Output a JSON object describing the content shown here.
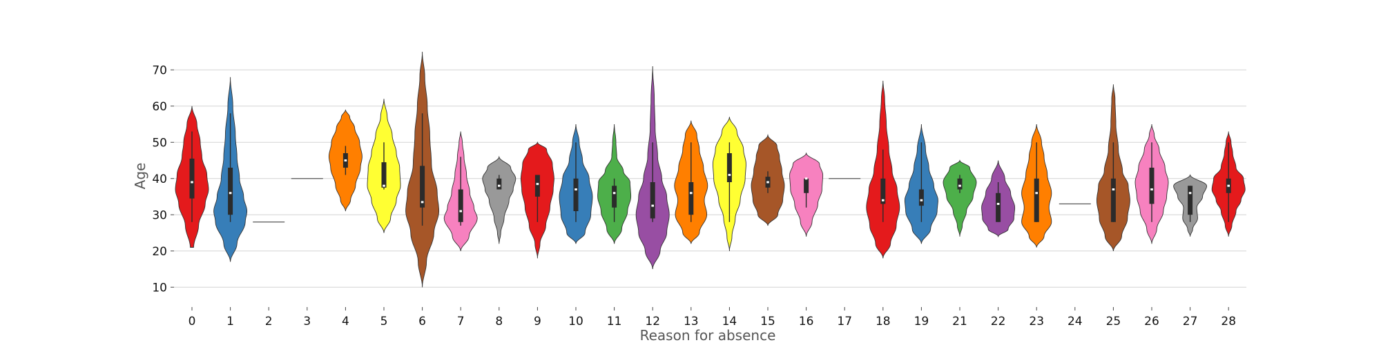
{
  "chart_data": {
    "type": "violin",
    "title": "",
    "xlabel": "Reason for absence",
    "ylabel": "Age",
    "ylim": [
      7,
      75
    ],
    "yticks": [
      10,
      20,
      30,
      40,
      50,
      60,
      70
    ],
    "grid": "horizontal",
    "categories": [
      "0",
      "1",
      "2",
      "3",
      "4",
      "5",
      "6",
      "7",
      "8",
      "9",
      "10",
      "11",
      "12",
      "13",
      "14",
      "15",
      "16",
      "17",
      "18",
      "19",
      "21",
      "22",
      "23",
      "24",
      "25",
      "26",
      "27",
      "28"
    ],
    "colors": [
      "#e41a1c",
      "#377eb8",
      "#4daf4a",
      "#984ea3",
      "#ff7f00",
      "#ffff33",
      "#a65628",
      "#f781bf",
      "#999999"
    ],
    "distributions": [
      {
        "category": "0",
        "min": 28,
        "q1": 34.5,
        "median": 39,
        "q3": 45.5,
        "max": 53,
        "range": [
          21,
          60
        ],
        "shape": [
          [
            21,
            0.1
          ],
          [
            27,
            0.4
          ],
          [
            33,
            0.8
          ],
          [
            37,
            1.0
          ],
          [
            41,
            0.9
          ],
          [
            46,
            0.6
          ],
          [
            50,
            0.5
          ],
          [
            55,
            0.3
          ],
          [
            60,
            0
          ]
        ]
      },
      {
        "category": "1",
        "min": 28,
        "q1": 30,
        "median": 36,
        "q3": 43,
        "max": 58,
        "range": [
          17,
          68
        ],
        "shape": [
          [
            17,
            0
          ],
          [
            22,
            0.4
          ],
          [
            28,
            0.9
          ],
          [
            31,
            1.0
          ],
          [
            35,
            0.8
          ],
          [
            40,
            0.55
          ],
          [
            46,
            0.4
          ],
          [
            52,
            0.3
          ],
          [
            60,
            0.15
          ],
          [
            68,
            0
          ]
        ]
      },
      {
        "category": "2",
        "single": 28
      },
      {
        "category": "3",
        "single": 40
      },
      {
        "category": "4",
        "min": 41,
        "q1": 43,
        "median": 45,
        "q3": 47,
        "max": 49,
        "range": [
          31,
          59
        ],
        "shape": [
          [
            31,
            0
          ],
          [
            34,
            0.3
          ],
          [
            38,
            0.6
          ],
          [
            43,
            0.9
          ],
          [
            46,
            1.0
          ],
          [
            50,
            0.85
          ],
          [
            54,
            0.55
          ],
          [
            57,
            0.25
          ],
          [
            59,
            0
          ]
        ]
      },
      {
        "category": "5",
        "min": 37,
        "q1": 37.5,
        "median": 38,
        "q3": 44.5,
        "max": 50,
        "range": [
          25,
          62
        ],
        "shape": [
          [
            25,
            0
          ],
          [
            29,
            0.4
          ],
          [
            34,
            0.75
          ],
          [
            38,
            1.0
          ],
          [
            43,
            0.95
          ],
          [
            47,
            0.75
          ],
          [
            52,
            0.5
          ],
          [
            57,
            0.2
          ],
          [
            62,
            0
          ]
        ]
      },
      {
        "category": "6",
        "min": 27,
        "q1": 32,
        "median": 33.5,
        "q3": 43.5,
        "max": 58,
        "range": [
          10,
          75
        ],
        "shape": [
          [
            10,
            0
          ],
          [
            17,
            0.25
          ],
          [
            25,
            0.7
          ],
          [
            31,
            1.0
          ],
          [
            36,
            0.9
          ],
          [
            44,
            0.55
          ],
          [
            52,
            0.45
          ],
          [
            60,
            0.3
          ],
          [
            68,
            0.15
          ],
          [
            75,
            0
          ]
        ]
      },
      {
        "category": "7",
        "min": 27,
        "q1": 28,
        "median": 31,
        "q3": 37,
        "max": 46,
        "range": [
          20,
          53
        ],
        "shape": [
          [
            20,
            0
          ],
          [
            24,
            0.5
          ],
          [
            29,
            1.0
          ],
          [
            32,
            0.8
          ],
          [
            36,
            0.55
          ],
          [
            41,
            0.35
          ],
          [
            46,
            0.2
          ],
          [
            50,
            0.1
          ],
          [
            53,
            0
          ]
        ]
      },
      {
        "category": "8",
        "min": 37,
        "q1": 37,
        "median": 38,
        "q3": 40,
        "max": 41,
        "range": [
          22,
          46
        ],
        "shape": [
          [
            22,
            0
          ],
          [
            25,
            0.1
          ],
          [
            29,
            0.3
          ],
          [
            34,
            0.6
          ],
          [
            37,
            0.85
          ],
          [
            40,
            1.0
          ],
          [
            43,
            0.7
          ],
          [
            46,
            0
          ]
        ]
      },
      {
        "category": "9",
        "min": 28,
        "q1": 35,
        "median": 38.5,
        "q3": 41,
        "max": 41,
        "range": [
          18,
          50
        ],
        "shape": [
          [
            18,
            0
          ],
          [
            22,
            0.15
          ],
          [
            27,
            0.5
          ],
          [
            32,
            0.75
          ],
          [
            37,
            0.95
          ],
          [
            40,
            1.0
          ],
          [
            44,
            0.9
          ],
          [
            48,
            0.55
          ],
          [
            50,
            0
          ]
        ]
      },
      {
        "category": "10",
        "min": 28,
        "q1": 31,
        "median": 37,
        "q3": 40,
        "max": 50,
        "range": [
          22,
          55
        ],
        "shape": [
          [
            22,
            0
          ],
          [
            25,
            0.55
          ],
          [
            30,
            0.9
          ],
          [
            35,
            1.0
          ],
          [
            40,
            0.8
          ],
          [
            45,
            0.4
          ],
          [
            50,
            0.2
          ],
          [
            55,
            0
          ]
        ]
      },
      {
        "category": "11",
        "min": 28,
        "q1": 32,
        "median": 36,
        "q3": 38,
        "max": 40,
        "range": [
          22,
          55
        ],
        "shape": [
          [
            22,
            0
          ],
          [
            26,
            0.45
          ],
          [
            31,
            0.8
          ],
          [
            35,
            1.0
          ],
          [
            39,
            0.95
          ],
          [
            42,
            0.55
          ],
          [
            46,
            0.15
          ],
          [
            50,
            0.1
          ],
          [
            55,
            0
          ]
        ]
      },
      {
        "category": "12",
        "min": 28,
        "q1": 29,
        "median": 32.5,
        "q3": 39,
        "max": 50,
        "range": [
          15,
          71
        ],
        "shape": [
          [
            15,
            0
          ],
          [
            20,
            0.45
          ],
          [
            25,
            0.85
          ],
          [
            30,
            1.0
          ],
          [
            35,
            0.85
          ],
          [
            40,
            0.55
          ],
          [
            46,
            0.3
          ],
          [
            54,
            0.15
          ],
          [
            62,
            0.1
          ],
          [
            71,
            0
          ]
        ]
      },
      {
        "category": "13",
        "min": 28,
        "q1": 30,
        "median": 36,
        "q3": 39,
        "max": 50,
        "range": [
          22,
          56
        ],
        "shape": [
          [
            22,
            0
          ],
          [
            25,
            0.5
          ],
          [
            30,
            0.95
          ],
          [
            34,
            0.8
          ],
          [
            38,
            1.0
          ],
          [
            43,
            0.75
          ],
          [
            48,
            0.5
          ],
          [
            52,
            0.35
          ],
          [
            56,
            0
          ]
        ]
      },
      {
        "category": "14",
        "min": 28,
        "q1": 39,
        "median": 41,
        "q3": 47,
        "max": 50,
        "range": [
          20,
          57
        ],
        "shape": [
          [
            20,
            0
          ],
          [
            24,
            0.15
          ],
          [
            29,
            0.35
          ],
          [
            34,
            0.65
          ],
          [
            40,
            0.95
          ],
          [
            44,
            1.0
          ],
          [
            48,
            0.85
          ],
          [
            53,
            0.45
          ],
          [
            57,
            0
          ]
        ]
      },
      {
        "category": "15",
        "min": 36,
        "q1": 37.5,
        "median": 39,
        "q3": 40.5,
        "max": 42,
        "range": [
          27,
          52
        ],
        "shape": [
          [
            27,
            0
          ],
          [
            30,
            0.6
          ],
          [
            34,
            0.9
          ],
          [
            38,
            1.0
          ],
          [
            42,
            0.85
          ],
          [
            46,
            0.7
          ],
          [
            49,
            0.55
          ],
          [
            52,
            0
          ]
        ]
      },
      {
        "category": "16",
        "min": 32,
        "q1": 36,
        "median": 40,
        "q3": 40,
        "max": 40,
        "range": [
          24,
          47
        ],
        "shape": [
          [
            24,
            0
          ],
          [
            28,
            0.35
          ],
          [
            33,
            0.7
          ],
          [
            37,
            0.95
          ],
          [
            41,
            1.0
          ],
          [
            44,
            0.8
          ],
          [
            47,
            0
          ]
        ]
      },
      {
        "category": "17",
        "single": 40
      },
      {
        "category": "18",
        "min": 28,
        "q1": 33,
        "median": 34,
        "q3": 40,
        "max": 48,
        "range": [
          18,
          67
        ],
        "shape": [
          [
            18,
            0
          ],
          [
            22,
            0.45
          ],
          [
            27,
            0.8
          ],
          [
            32,
            1.0
          ],
          [
            37,
            0.85
          ],
          [
            42,
            0.55
          ],
          [
            48,
            0.35
          ],
          [
            55,
            0.2
          ],
          [
            62,
            0.1
          ],
          [
            67,
            0
          ]
        ]
      },
      {
        "category": "19",
        "min": 28,
        "q1": 32.5,
        "median": 34,
        "q3": 37,
        "max": 50,
        "range": [
          22,
          55
        ],
        "shape": [
          [
            22,
            0
          ],
          [
            26,
            0.55
          ],
          [
            31,
            0.95
          ],
          [
            34,
            1.0
          ],
          [
            38,
            0.75
          ],
          [
            43,
            0.45
          ],
          [
            48,
            0.25
          ],
          [
            55,
            0
          ]
        ]
      },
      {
        "category": "21",
        "min": 36,
        "q1": 37,
        "median": 38,
        "q3": 40,
        "max": 41,
        "range": [
          24,
          45
        ],
        "shape": [
          [
            24,
            0
          ],
          [
            27,
            0.15
          ],
          [
            31,
            0.4
          ],
          [
            35,
            0.8
          ],
          [
            39,
            1.0
          ],
          [
            43,
            0.6
          ],
          [
            45,
            0
          ]
        ]
      },
      {
        "category": "22",
        "min": 28,
        "q1": 28,
        "median": 33,
        "q3": 36,
        "max": 39,
        "range": [
          24,
          45
        ],
        "shape": [
          [
            24,
            0
          ],
          [
            26,
            0.6
          ],
          [
            29,
            0.95
          ],
          [
            32,
            1.0
          ],
          [
            36,
            0.75
          ],
          [
            40,
            0.4
          ],
          [
            45,
            0
          ]
        ]
      },
      {
        "category": "23",
        "min": 28,
        "q1": 28,
        "median": 36,
        "q3": 40,
        "max": 50,
        "range": [
          21,
          55
        ],
        "shape": [
          [
            21,
            0
          ],
          [
            24,
            0.45
          ],
          [
            28,
            0.9
          ],
          [
            32,
            0.75
          ],
          [
            36,
            0.9
          ],
          [
            41,
            0.65
          ],
          [
            46,
            0.45
          ],
          [
            50,
            0.3
          ],
          [
            55,
            0
          ]
        ]
      },
      {
        "category": "24",
        "single": 33
      },
      {
        "category": "25",
        "min": 28,
        "q1": 28,
        "median": 37,
        "q3": 40,
        "max": 50,
        "range": [
          20,
          66
        ],
        "shape": [
          [
            20,
            0
          ],
          [
            24,
            0.5
          ],
          [
            29,
            0.85
          ],
          [
            34,
            1.0
          ],
          [
            38,
            0.9
          ],
          [
            42,
            0.55
          ],
          [
            48,
            0.3
          ],
          [
            55,
            0.15
          ],
          [
            62,
            0.1
          ],
          [
            66,
            0
          ]
        ]
      },
      {
        "category": "26",
        "min": 28,
        "q1": 33,
        "median": 37,
        "q3": 43,
        "max": 50,
        "range": [
          22,
          55
        ],
        "shape": [
          [
            22,
            0
          ],
          [
            26,
            0.3
          ],
          [
            31,
            0.7
          ],
          [
            35,
            0.9
          ],
          [
            39,
            1.0
          ],
          [
            43,
            0.8
          ],
          [
            48,
            0.45
          ],
          [
            52,
            0.15
          ],
          [
            55,
            0
          ]
        ]
      },
      {
        "category": "27",
        "min": 28,
        "q1": 30,
        "median": 36,
        "q3": 38,
        "max": 38,
        "range": [
          24,
          41
        ],
        "shape": [
          [
            24,
            0
          ],
          [
            26,
            0.15
          ],
          [
            29,
            0.45
          ],
          [
            32,
            0.4
          ],
          [
            35,
            0.75
          ],
          [
            38,
            1.0
          ],
          [
            41,
            0
          ]
        ]
      },
      {
        "category": "28",
        "min": 28,
        "q1": 36,
        "median": 38,
        "q3": 40,
        "max": 50,
        "range": [
          24,
          53
        ],
        "shape": [
          [
            24,
            0
          ],
          [
            27,
            0.2
          ],
          [
            31,
            0.45
          ],
          [
            34,
            0.75
          ],
          [
            37,
            1.0
          ],
          [
            40,
            0.9
          ],
          [
            43,
            0.45
          ],
          [
            47,
            0.25
          ],
          [
            50,
            0.15
          ],
          [
            53,
            0
          ]
        ]
      }
    ]
  }
}
